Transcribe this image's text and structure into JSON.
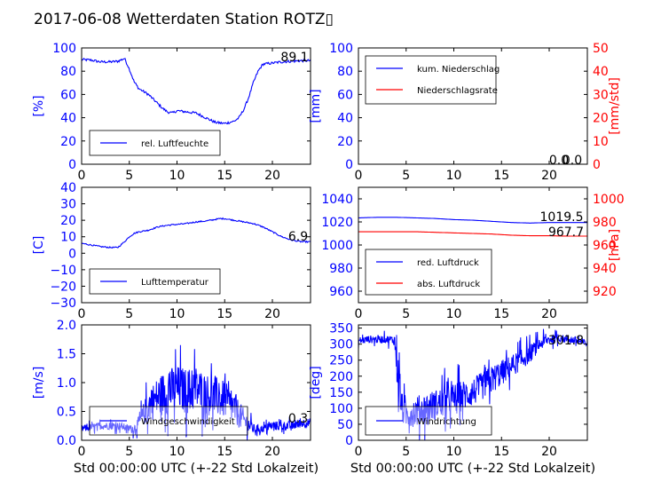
{
  "figure": {
    "title": "2017-06-08 Wetterdaten Station ROTZ▯",
    "xlabel_bottom": "Std 00:00:00 UTC (+-22 Std Lokalzeit)"
  },
  "chart_data": [
    {
      "id": "humidity",
      "type": "line",
      "ylabel": "[%]",
      "xlim": [
        0,
        24
      ],
      "ylim": [
        0,
        100
      ],
      "yticks": [
        "0",
        "20",
        "40",
        "60",
        "80",
        "100"
      ],
      "xticks": [
        "0",
        "5",
        "10",
        "15",
        "20"
      ],
      "legend": {
        "placement": "lower-left",
        "entries": [
          "rel. Luftfeuchte"
        ]
      },
      "annotations": [
        "89.1"
      ],
      "series": [
        {
          "name": "rel. Luftfeuchte",
          "color": "#0000ff",
          "x": [
            0,
            1,
            2,
            3,
            3.8,
            4.5,
            5,
            5.5,
            6,
            7,
            8,
            8.5,
            9,
            9.5,
            10,
            11,
            12,
            12.5,
            13,
            13.5,
            14,
            15,
            16,
            16.5,
            17,
            17.5,
            18,
            18.5,
            19,
            20,
            21,
            22,
            23,
            24
          ],
          "y": [
            90,
            89.5,
            88,
            88,
            88.5,
            91,
            82,
            71,
            65,
            60,
            52,
            48,
            45,
            44,
            46,
            45,
            44,
            42,
            40,
            38,
            36,
            35,
            37,
            40,
            47,
            57,
            70,
            80,
            86,
            87,
            88,
            88.5,
            89,
            89.1
          ]
        }
      ]
    },
    {
      "id": "precip",
      "type": "line",
      "ylabel": "[mm]",
      "ylabel_right": "[mm/std]",
      "xlim": [
        0,
        24
      ],
      "ylim": [
        0,
        100
      ],
      "ylim_right": [
        0,
        50
      ],
      "yticks": [
        "0",
        "20",
        "40",
        "60",
        "80",
        "100"
      ],
      "yticks_right": [
        "0",
        "10",
        "20",
        "30",
        "40",
        "50"
      ],
      "xticks": [
        "0",
        "5",
        "10",
        "15",
        "20"
      ],
      "legend": {
        "placement": "upper-left",
        "entries": [
          "kum. Niederschlag",
          "Niederschlagsrate"
        ]
      },
      "annotations": [
        "0.0",
        "0.0"
      ],
      "series": [
        {
          "name": "kum. Niederschlag",
          "color": "#0000ff",
          "x": [
            0,
            24
          ],
          "y": [
            0,
            0
          ]
        },
        {
          "name": "Niederschlagsrate",
          "color": "#ff0000",
          "x": [
            0,
            24
          ],
          "y": [
            0,
            0
          ]
        }
      ]
    },
    {
      "id": "temperature",
      "type": "line",
      "ylabel": "[C]",
      "xlim": [
        0,
        24
      ],
      "ylim": [
        -30,
        40
      ],
      "yticks": [
        "−30",
        "−20",
        "−10",
        "0",
        "10",
        "20",
        "30",
        "40"
      ],
      "xticks": [
        "0",
        "5",
        "10",
        "15",
        "20"
      ],
      "legend": {
        "placement": "lower-left",
        "entries": [
          "Lufttemperatur"
        ]
      },
      "annotations": [
        "6.9"
      ],
      "series": [
        {
          "name": "Lufttemperatur",
          "color": "#0000ff",
          "x": [
            0,
            1,
            2,
            3,
            3.8,
            4.5,
            5,
            5.5,
            6,
            7,
            8,
            9,
            10,
            11,
            12,
            13,
            14,
            14.5,
            15,
            16,
            17,
            18,
            19,
            20,
            21,
            22,
            23,
            24
          ],
          "y": [
            6,
            5,
            4,
            3.5,
            3.5,
            7,
            10,
            12,
            13,
            14,
            16,
            17,
            17.5,
            18,
            19,
            19.5,
            20.5,
            21,
            21,
            20,
            19,
            18,
            16,
            13,
            10,
            8,
            7,
            6.9
          ]
        }
      ]
    },
    {
      "id": "pressure",
      "type": "line",
      "xlim": [
        0,
        24
      ],
      "ylim": [
        950,
        1050
      ],
      "ylabel_right": "[hPa]",
      "ylim_right": [
        910,
        1010
      ],
      "yticks": [
        "960",
        "980",
        "1000",
        "1020",
        "1040"
      ],
      "yticks_right": [
        "920",
        "940",
        "960",
        "980",
        "1000"
      ],
      "xticks": [
        "0",
        "5",
        "10",
        "15",
        "20"
      ],
      "legend": {
        "placement": "lower-left",
        "entries": [
          "red. Luftdruck",
          "abs. Luftdruck"
        ]
      },
      "annotations": [
        "1019.5",
        "967.7"
      ],
      "series": [
        {
          "name": "red. Luftdruck",
          "color": "#0000ff",
          "x": [
            0,
            2,
            4,
            6,
            8,
            10,
            12,
            14,
            16,
            18,
            20,
            22,
            24
          ],
          "y": [
            1023.5,
            1024,
            1024,
            1023.5,
            1023,
            1022,
            1021.5,
            1020.5,
            1019.5,
            1019,
            1019.5,
            1019.5,
            1019.5
          ]
        },
        {
          "name": "abs. Luftdruck",
          "color": "#ff0000",
          "axis": "right",
          "x": [
            0,
            2,
            4,
            6,
            8,
            10,
            12,
            14,
            16,
            18,
            20,
            22,
            24
          ],
          "y": [
            971.5,
            971.5,
            971.5,
            971.5,
            971,
            970.5,
            970,
            969.5,
            968.5,
            968,
            968,
            967.7,
            967.7
          ]
        }
      ]
    },
    {
      "id": "windspeed",
      "type": "line",
      "ylabel": "[m/s]",
      "xlim": [
        0,
        24
      ],
      "ylim": [
        0,
        2
      ],
      "yticks": [
        "0.0",
        "0.5",
        "1.0",
        "1.5",
        "2.0"
      ],
      "xticks": [
        "0",
        "5",
        "10",
        "15",
        "20"
      ],
      "legend": {
        "placement": "lower-left",
        "entries": [
          "Windgeschwindigkeit"
        ]
      },
      "annotations": [
        "0.3"
      ],
      "series": [
        {
          "name": "Windgeschwindigkeit",
          "color": "#0000ff",
          "noisy": true,
          "x": [
            0,
            2,
            4,
            5,
            5.5,
            6,
            6.5,
            7,
            8,
            9,
            10,
            11,
            12,
            13,
            14,
            15,
            16,
            17,
            18,
            19,
            20,
            21,
            22,
            23,
            24
          ],
          "y": [
            0.2,
            0.25,
            0.25,
            0.2,
            0.2,
            0.3,
            0.45,
            0.6,
            0.75,
            0.85,
            0.9,
            0.85,
            0.9,
            0.8,
            0.75,
            0.7,
            0.55,
            0.35,
            0.2,
            0.2,
            0.25,
            0.25,
            0.25,
            0.3,
            0.3
          ],
          "spread": [
            0.08,
            0.08,
            0.08,
            0.08,
            0.1,
            0.15,
            0.25,
            0.35,
            0.45,
            0.5,
            0.5,
            0.5,
            0.5,
            0.45,
            0.45,
            0.4,
            0.35,
            0.25,
            0.1,
            0.08,
            0.1,
            0.1,
            0.1,
            0.1,
            0.1
          ]
        }
      ]
    },
    {
      "id": "winddir",
      "type": "line",
      "ylabel": "[deg]",
      "xlim": [
        0,
        24
      ],
      "ylim": [
        0,
        360
      ],
      "yticks": [
        "0",
        "50",
        "100",
        "150",
        "200",
        "250",
        "300",
        "350"
      ],
      "xticks": [
        "0",
        "5",
        "10",
        "15",
        "20"
      ],
      "legend": {
        "placement": "lower-left",
        "entries": [
          "Windrichtung"
        ]
      },
      "annotations": [
        "301.8"
      ],
      "series": [
        {
          "name": "Windrichtung",
          "color": "#0000ff",
          "noisy": true,
          "x": [
            0,
            1,
            2,
            3,
            3.8,
            4.2,
            4.5,
            5,
            6,
            7,
            8,
            9,
            10,
            11,
            12,
            13,
            14,
            15,
            16,
            17,
            18,
            19,
            20,
            21,
            22,
            23,
            24
          ],
          "y": [
            310,
            315,
            315,
            315,
            312,
            200,
            100,
            80,
            90,
            100,
            110,
            120,
            130,
            140,
            150,
            170,
            190,
            210,
            230,
            250,
            270,
            300,
            315,
            318,
            315,
            310,
            302
          ],
          "spread": [
            15,
            15,
            15,
            15,
            20,
            80,
            60,
            50,
            60,
            60,
            60,
            60,
            60,
            60,
            55,
            55,
            55,
            50,
            45,
            40,
            35,
            25,
            20,
            15,
            15,
            15,
            15
          ]
        }
      ]
    }
  ]
}
